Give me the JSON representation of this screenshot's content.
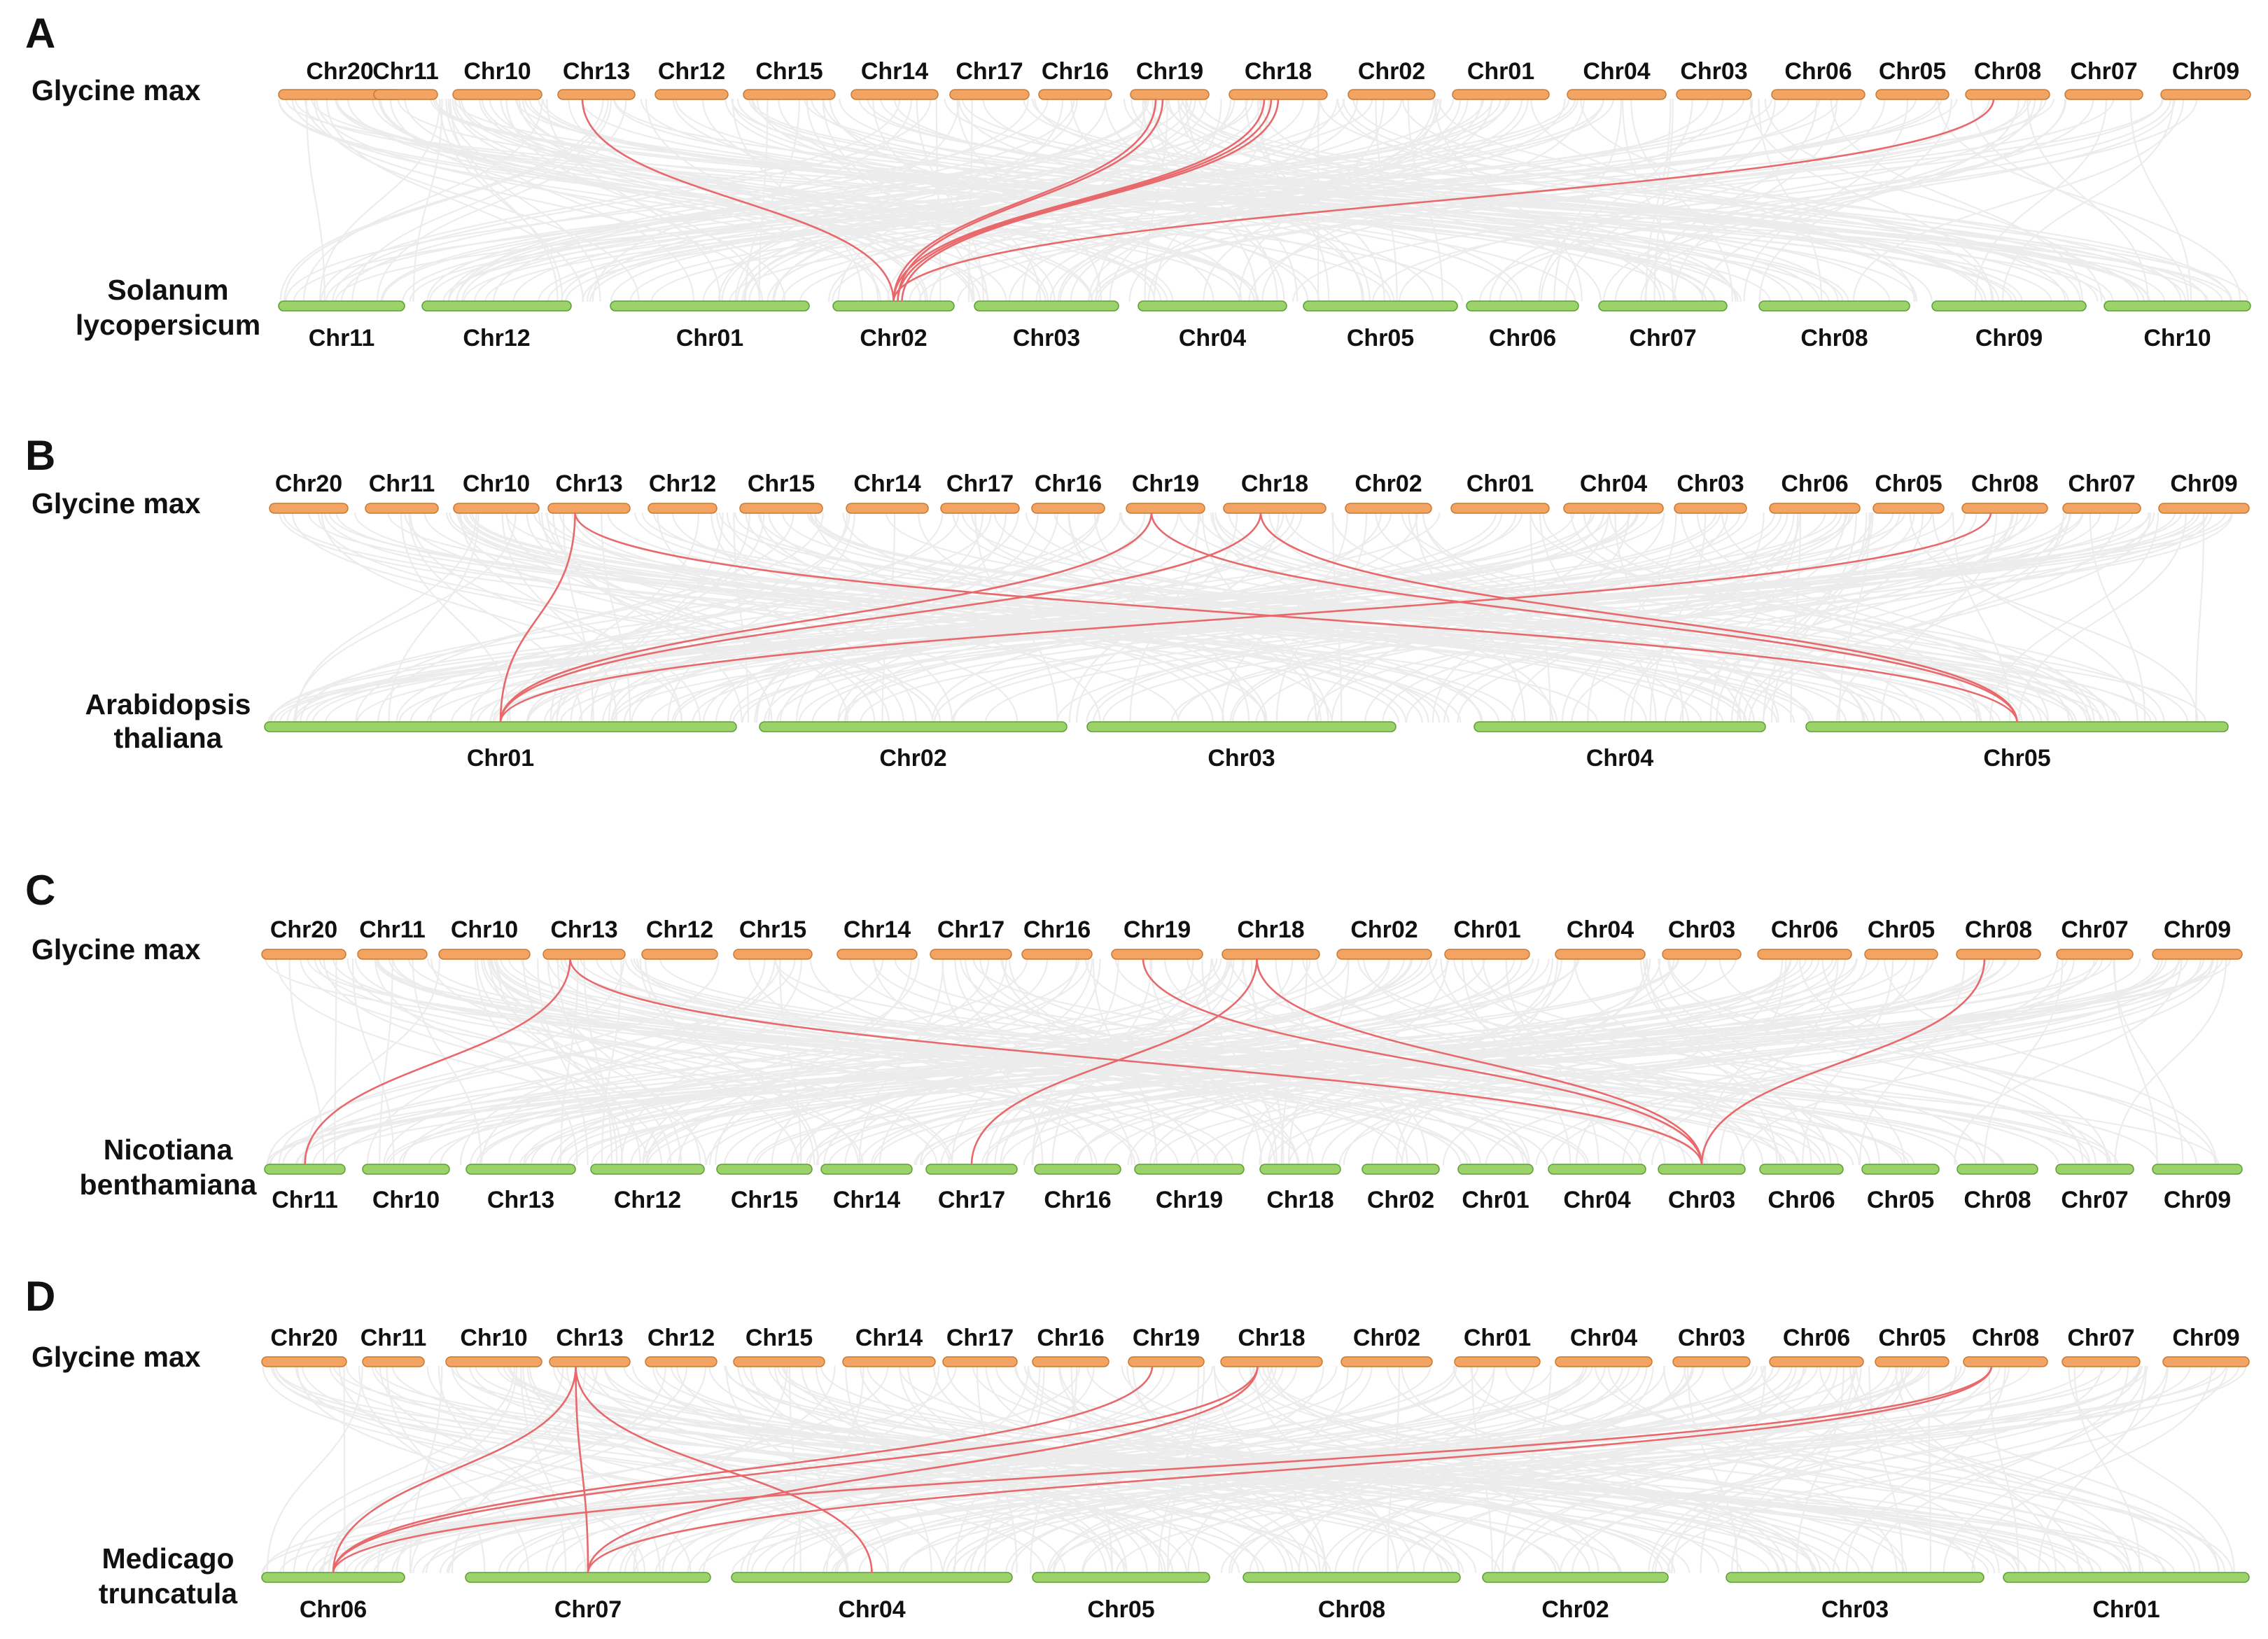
{
  "figure": {
    "colors": {
      "reference_chr": "#f4a462",
      "reference_chr_stroke": "#c77a32",
      "target_chr": "#9bd26a",
      "target_chr_stroke": "#5e9e36",
      "background_links": "#dedede",
      "highlight_links": "#e8696b"
    },
    "panels": [
      {
        "letter": "A",
        "top_species": [
          "Glycine max"
        ],
        "bottom_species": [
          "Solanum",
          "lycopersicum"
        ],
        "top_chromosomes": [
          "Chr20",
          "Chr11",
          "Chr10",
          "Chr13",
          "Chr12",
          "Chr15",
          "Chr14",
          "Chr17",
          "Chr16",
          "Chr19",
          "Chr18",
          "Chr02",
          "Chr01",
          "Chr04",
          "Chr03",
          "Chr06",
          "Chr05",
          "Chr08",
          "Chr07",
          "Chr09"
        ],
        "bottom_chromosomes": [
          "Chr11",
          "Chr12",
          "Chr01",
          "Chr02",
          "Chr03",
          "Chr04",
          "Chr05",
          "Chr06",
          "Chr07",
          "Chr08",
          "Chr09",
          "Chr10"
        ],
        "highlighted_links": [
          {
            "from": "Chr13",
            "to": "Chr02"
          },
          {
            "from": "Chr19",
            "to": "Chr02"
          },
          {
            "from": "Chr19",
            "to": "Chr02"
          },
          {
            "from": "Chr18",
            "to": "Chr02"
          },
          {
            "from": "Chr18",
            "to": "Chr02"
          },
          {
            "from": "Chr18",
            "to": "Chr02"
          },
          {
            "from": "Chr08",
            "to": "Chr02"
          }
        ]
      },
      {
        "letter": "B",
        "top_species": [
          "Glycine max"
        ],
        "bottom_species": [
          "Arabidopsis",
          "thaliana"
        ],
        "top_chromosomes": [
          "Chr20",
          "Chr11",
          "Chr10",
          "Chr13",
          "Chr12",
          "Chr15",
          "Chr14",
          "Chr17",
          "Chr16",
          "Chr19",
          "Chr18",
          "Chr02",
          "Chr01",
          "Chr04",
          "Chr03",
          "Chr06",
          "Chr05",
          "Chr08",
          "Chr07",
          "Chr09"
        ],
        "bottom_chromosomes": [
          "Chr01",
          "Chr02",
          "Chr03",
          "Chr04",
          "Chr05"
        ],
        "highlighted_links": [
          {
            "from": "Chr13",
            "to": "Chr01"
          },
          {
            "from": "Chr13",
            "to": "Chr05"
          },
          {
            "from": "Chr19",
            "to": "Chr01"
          },
          {
            "from": "Chr19",
            "to": "Chr05"
          },
          {
            "from": "Chr18",
            "to": "Chr01"
          },
          {
            "from": "Chr18",
            "to": "Chr05"
          },
          {
            "from": "Chr08",
            "to": "Chr01"
          }
        ]
      },
      {
        "letter": "C",
        "top_species": [
          "Glycine max"
        ],
        "bottom_species": [
          "Nicotiana",
          "benthamiana"
        ],
        "top_chromosomes": [
          "Chr20",
          "Chr11",
          "Chr10",
          "Chr13",
          "Chr12",
          "Chr15",
          "Chr14",
          "Chr17",
          "Chr16",
          "Chr19",
          "Chr18",
          "Chr02",
          "Chr01",
          "Chr04",
          "Chr03",
          "Chr06",
          "Chr05",
          "Chr08",
          "Chr07",
          "Chr09"
        ],
        "bottom_chromosomes": [
          "Chr11",
          "Chr10",
          "Chr13",
          "Chr12",
          "Chr15",
          "Chr14",
          "Chr17",
          "Chr16",
          "Chr19",
          "Chr18",
          "Chr02",
          "Chr01",
          "Chr04",
          "Chr03",
          "Chr06",
          "Chr05",
          "Chr08",
          "Chr07",
          "Chr09"
        ],
        "highlighted_links": [
          {
            "from": "Chr13",
            "to": "Chr11"
          },
          {
            "from": "Chr13",
            "to": "Chr03"
          },
          {
            "from": "Chr19",
            "to": "Chr03"
          },
          {
            "from": "Chr18",
            "to": "Chr17"
          },
          {
            "from": "Chr18",
            "to": "Chr03"
          },
          {
            "from": "Chr08",
            "to": "Chr03"
          }
        ]
      },
      {
        "letter": "D",
        "top_species": [
          "Glycine max"
        ],
        "bottom_species": [
          "Medicago",
          "truncatula"
        ],
        "top_chromosomes": [
          "Chr20",
          "Chr11",
          "Chr10",
          "Chr13",
          "Chr12",
          "Chr15",
          "Chr14",
          "Chr17",
          "Chr16",
          "Chr19",
          "Chr18",
          "Chr02",
          "Chr01",
          "Chr04",
          "Chr03",
          "Chr06",
          "Chr05",
          "Chr08",
          "Chr07",
          "Chr09"
        ],
        "bottom_chromosomes": [
          "Chr06",
          "Chr07",
          "Chr04",
          "Chr05",
          "Chr08",
          "Chr02",
          "Chr03",
          "Chr01"
        ],
        "highlighted_links": [
          {
            "from": "Chr13",
            "to": "Chr06"
          },
          {
            "from": "Chr13",
            "to": "Chr07"
          },
          {
            "from": "Chr13",
            "to": "Chr04"
          },
          {
            "from": "Chr19",
            "to": "Chr06"
          },
          {
            "from": "Chr18",
            "to": "Chr06"
          },
          {
            "from": "Chr18",
            "to": "Chr07"
          },
          {
            "from": "Chr08",
            "to": "Chr06"
          },
          {
            "from": "Chr08",
            "to": "Chr07"
          }
        ]
      }
    ]
  }
}
